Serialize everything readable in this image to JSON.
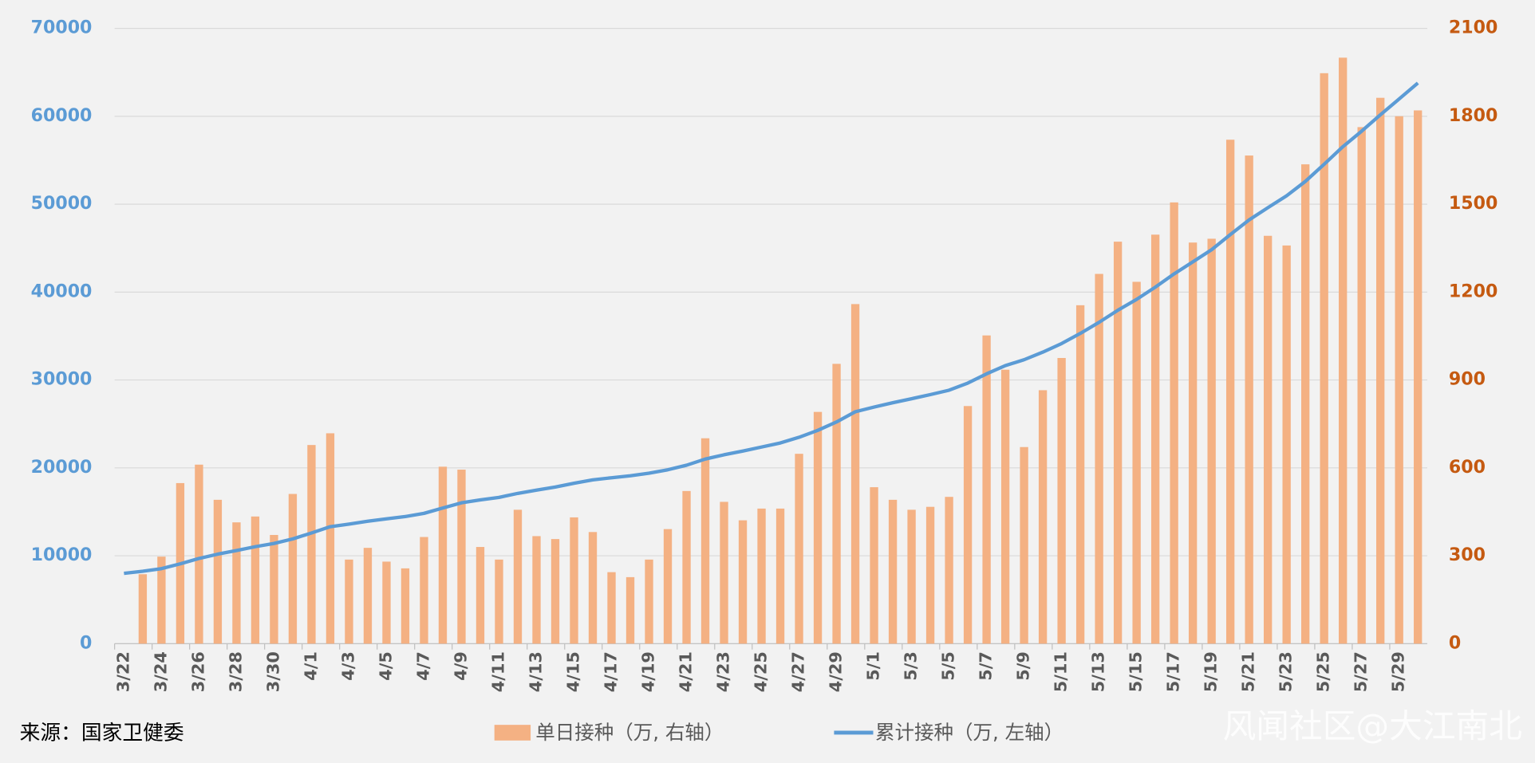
{
  "chart_data": {
    "type": "bar-line",
    "source": "来源：国家卫健委",
    "watermark": "风闻社区@大江南北",
    "categories": [
      "3/22",
      null,
      "3/24",
      null,
      "3/26",
      null,
      "3/28",
      null,
      "3/30",
      null,
      "4/1",
      null,
      "4/3",
      null,
      "4/5",
      null,
      "4/7",
      null,
      "4/9",
      null,
      "4/11",
      null,
      "4/13",
      null,
      "4/15",
      null,
      "4/17",
      null,
      "4/19",
      null,
      "4/21",
      null,
      "4/23",
      null,
      "4/25",
      null,
      "4/27",
      null,
      "4/29",
      null,
      "5/1",
      null,
      "5/3",
      null,
      "5/5",
      null,
      "5/7",
      null,
      "5/9",
      null,
      "5/11",
      null,
      "5/13",
      null,
      "5/15",
      null,
      "5/17",
      null,
      "5/19",
      null,
      "5/21",
      null,
      "5/23",
      null,
      "5/25",
      null,
      "5/27",
      null,
      "5/29",
      null
    ],
    "series": [
      {
        "name": "单日接种（万, 右轴）",
        "type": "bar",
        "axis": "y2",
        "color": "#f4b183",
        "values": [
          null,
          237,
          297,
          548,
          611,
          491,
          414,
          434,
          371,
          511,
          678,
          718,
          287,
          327,
          280,
          257,
          364,
          604,
          594,
          330,
          287,
          457,
          367,
          357,
          431,
          381,
          244,
          227,
          287,
          391,
          521,
          701,
          484,
          421,
          461,
          461,
          648,
          791,
          955,
          1159,
          534,
          491,
          457,
          467,
          501,
          811,
          1052,
          935,
          671,
          865,
          975,
          1155,
          1262,
          1372,
          1235,
          1396,
          1506,
          1369,
          1382,
          1720,
          1666,
          1392,
          1359,
          1636,
          1947,
          2000,
          1763,
          1863,
          1800,
          1820
        ]
      },
      {
        "name": "累计接种（万, 左轴）",
        "type": "line",
        "axis": "y",
        "color": "#5b9bd5",
        "values": [
          8000,
          8237,
          8534,
          9082,
          9693,
          10184,
          10598,
          11032,
          11403,
          11914,
          12592,
          13310,
          13597,
          13924,
          14204,
          14461,
          14825,
          15429,
          16023,
          16353,
          16640,
          17097,
          17464,
          17821,
          18252,
          18633,
          18877,
          19104,
          19391,
          19782,
          20303,
          21004,
          21488,
          21909,
          22370,
          22831,
          23479,
          24270,
          25225,
          26384,
          26918,
          27409,
          27866,
          28333,
          28834,
          29645,
          30697,
          31632,
          32303,
          33168,
          34143,
          35298,
          36560,
          37932,
          39167,
          40563,
          42069,
          43438,
          44820,
          46540,
          48206,
          49598,
          50957,
          52593,
          54540,
          56540,
          58303,
          60166,
          61966,
          63786
        ]
      }
    ],
    "ylim": [
      0,
      70000
    ],
    "yticks": [
      0,
      10000,
      20000,
      30000,
      40000,
      50000,
      60000,
      70000
    ],
    "y2lim": [
      0,
      2100
    ],
    "y2ticks": [
      0,
      300,
      600,
      900,
      1200,
      1500,
      1800,
      2100
    ],
    "grid": true
  }
}
